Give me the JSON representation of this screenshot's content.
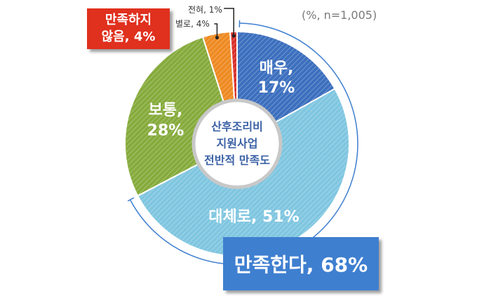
{
  "chart_data": {
    "type": "pie",
    "center_label": [
      "산후조리비",
      "지원사업",
      "전반적 만족도"
    ],
    "note": "(%, n=1,005)",
    "slices": [
      {
        "label": "매우,",
        "pct": "17%",
        "value": 17,
        "color": "#3c6fbe"
      },
      {
        "label": "대체로, 51%",
        "pct": "",
        "value": 51,
        "color": "#7fc6e0"
      },
      {
        "label": "보통,",
        "pct": "28%",
        "value": 28,
        "color": "#86ab3c"
      },
      {
        "label": "별로, 4%",
        "pct": "",
        "value": 4,
        "color": "#ee8a22"
      },
      {
        "label": "전혀, 1%",
        "pct": "",
        "value": 1,
        "color": "#d9302a"
      }
    ],
    "groups": {
      "positive": {
        "text": "만족한다, 68%",
        "color": "#3f7fd0"
      },
      "negative": {
        "lines": [
          "만족하지",
          "않음, 4%"
        ],
        "color": "#e0301e"
      }
    }
  }
}
